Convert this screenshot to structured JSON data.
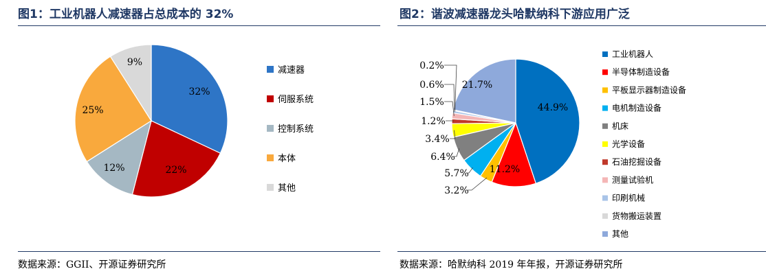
{
  "panels": {
    "left": {
      "title": "图1：工业机器人减速器占总成本的 32%",
      "source": "数据来源：GGII、开源证券研究所"
    },
    "right": {
      "title": "图2：谐波减速器龙头哈默纳科下游应用广泛",
      "source": "数据来源：哈默纳科 2019 年年报，开源证券研究所"
    }
  },
  "chart_data": [
    {
      "type": "pie",
      "title": "图1：工业机器人减速器占总成本的 32%",
      "start_angle_deg": 0,
      "direction": "clockwise",
      "legend_position": "right",
      "slices": [
        {
          "name": "减速器",
          "value": 32,
          "label": "32%",
          "color": "#2e75c6"
        },
        {
          "name": "伺服系统",
          "value": 22,
          "label": "22%",
          "color": "#c00000"
        },
        {
          "name": "控制系统",
          "value": 12,
          "label": "12%",
          "color": "#a5b8c3"
        },
        {
          "name": "本体",
          "value": 25,
          "label": "25%",
          "color": "#f9a93d"
        },
        {
          "name": "其他",
          "value": 9,
          "label": "9%",
          "color": "#d9d9d9"
        }
      ]
    },
    {
      "type": "pie",
      "title": "图2：谐波减速器龙头哈默纳科下游应用广泛",
      "start_angle_deg": 0,
      "direction": "clockwise",
      "legend_position": "right",
      "slices": [
        {
          "name": "工业机器人",
          "value": 44.9,
          "label": "44.9%",
          "color": "#0070c0"
        },
        {
          "name": "半导体制造设备",
          "value": 11.2,
          "label": "11.2%",
          "color": "#ff0000"
        },
        {
          "name": "平板显示器制造设备",
          "value": 3.2,
          "label": "3.2%",
          "color": "#ffc000"
        },
        {
          "name": "电机制造设备",
          "value": 5.7,
          "label": "5.7%",
          "color": "#00b0f0"
        },
        {
          "name": "机床",
          "value": 6.4,
          "label": "6.4%",
          "color": "#808080"
        },
        {
          "name": "光学设备",
          "value": 3.4,
          "label": "3.4%",
          "color": "#ffff00"
        },
        {
          "name": "石油挖掘设备",
          "value": 1.2,
          "label": "1.2%",
          "color": "#c0392b"
        },
        {
          "name": "测量试验机",
          "value": 1.5,
          "label": "1.5%",
          "color": "#f4b6b6"
        },
        {
          "name": "印刷机械",
          "value": 0.6,
          "label": "0.6%",
          "color": "#a9c4e8"
        },
        {
          "name": "货物搬运装置",
          "value": 0.2,
          "label": "0.2%",
          "color": "#d9d9d9"
        },
        {
          "name": "其他",
          "value": 21.7,
          "label": "21.7%",
          "color": "#8ea9db"
        }
      ]
    }
  ]
}
